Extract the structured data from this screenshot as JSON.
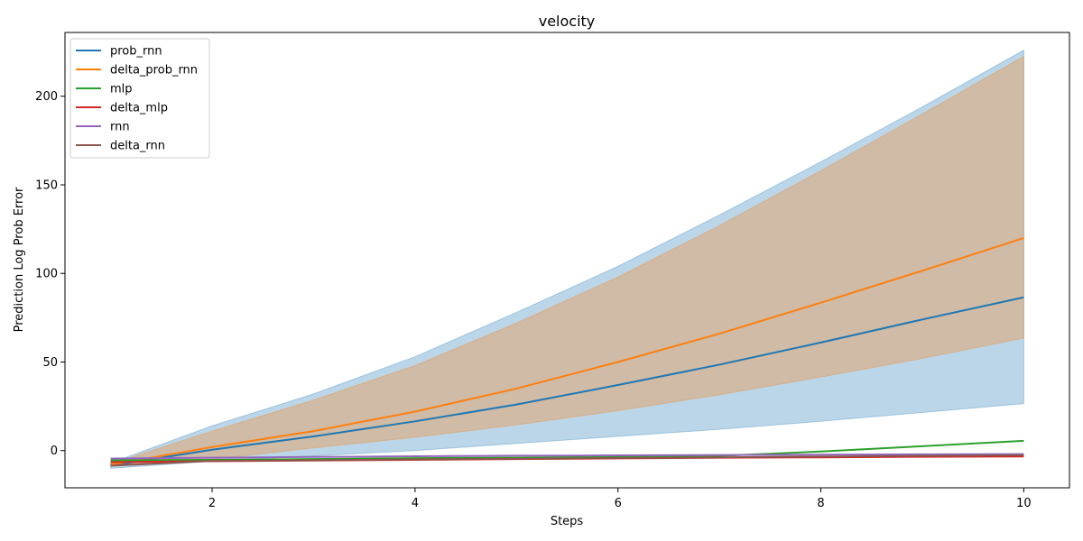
{
  "chart_data": {
    "type": "line",
    "title": "velocity",
    "xlabel": "Steps",
    "ylabel": "Prediction Log Prob Error",
    "xlim": [
      0.55,
      10.45
    ],
    "ylim": [
      -21,
      236
    ],
    "xticks": [
      2,
      4,
      6,
      8,
      10
    ],
    "yticks": [
      0,
      50,
      100,
      150,
      200
    ],
    "grid": false,
    "legend_position": "top-left",
    "x": [
      1,
      2,
      3,
      4,
      5,
      6,
      7,
      8,
      9,
      10
    ],
    "series": [
      {
        "name": "prob_rnn",
        "color": "#1f77b4",
        "values": [
          -8.5,
          0.5,
          8,
          16.5,
          26,
          37,
          48.5,
          61,
          74,
          86.5
        ],
        "band_lower": [
          -10,
          -6,
          -3,
          0,
          4,
          8,
          12,
          16.5,
          21.5,
          26.5
        ],
        "band_upper": [
          -7,
          14,
          32,
          53,
          78,
          104,
          133,
          163,
          194,
          226
        ]
      },
      {
        "name": "delta_prob_rnn",
        "color": "#ff7f0e",
        "values": [
          -8,
          2,
          11,
          22,
          35,
          50,
          66,
          83.5,
          101.5,
          120
        ],
        "band_lower": [
          -8.5,
          -5,
          1.5,
          7.5,
          14.5,
          22.5,
          31.5,
          41.5,
          52,
          63.5
        ],
        "band_upper": [
          -7.5,
          11,
          28.5,
          48,
          72,
          98,
          127,
          158,
          190,
          222.5
        ]
      },
      {
        "name": "mlp",
        "color": "#2ca02c",
        "values": [
          -5.5,
          -5.2,
          -4.8,
          -4.3,
          -4,
          -3.5,
          -3,
          -0.5,
          2.5,
          5.5
        ]
      },
      {
        "name": "delta_mlp",
        "color": "#d62728",
        "values": [
          -6.5,
          -6,
          -5.6,
          -5.2,
          -4.8,
          -4.4,
          -4,
          -3.8,
          -3.5,
          -3.3
        ]
      },
      {
        "name": "rnn",
        "color": "#9467bd",
        "values": [
          -4.5,
          -4,
          -3.6,
          -3.2,
          -2.9,
          -2.7,
          -2.5,
          -2.3,
          -2.1,
          -2.0
        ]
      },
      {
        "name": "delta_rnn",
        "color": "#8c564b",
        "values": [
          -8.5,
          -5.8,
          -5.4,
          -5,
          -4.6,
          -4.2,
          -3.8,
          -3.4,
          -3,
          -2.6
        ]
      }
    ]
  }
}
